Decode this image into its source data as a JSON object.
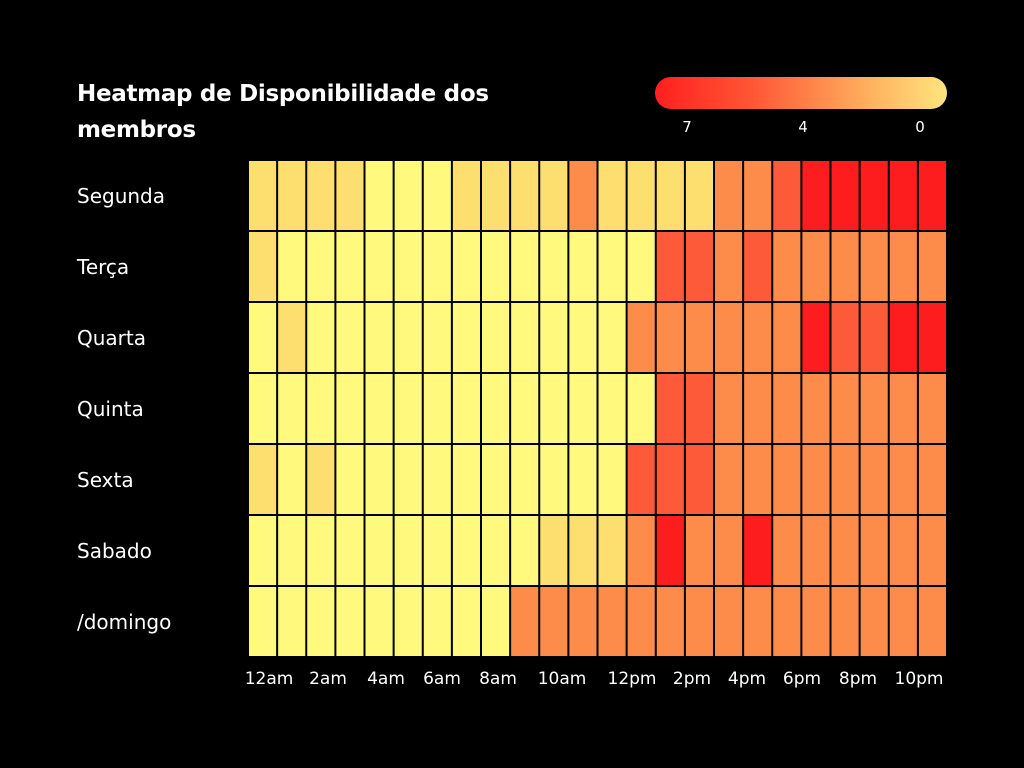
{
  "chart_data": {
    "type": "heatmap",
    "title": "Heatmap de Disponibilidade dos membros",
    "rows": [
      "Segunda",
      "Terça",
      "Quarta",
      "Quinta",
      "Sexta",
      "Sabado",
      "/domingo"
    ],
    "x_tick_labels": [
      "12am",
      "2am",
      "4am",
      "6am",
      "8am",
      "10am",
      "12pm",
      "2pm",
      "4pm",
      "6pm",
      "8pm",
      "10pm"
    ],
    "legend": {
      "labels": [
        "7",
        "4",
        "0"
      ],
      "min": 0,
      "max": 7,
      "colors": [
        "#ff1f1f",
        "#ff5a36",
        "#ffb460",
        "#ffe57d"
      ]
    },
    "values": [
      [
        1,
        1,
        1,
        1,
        0,
        0,
        0,
        1,
        1,
        1,
        1,
        4,
        1,
        1,
        1,
        1,
        4,
        4,
        5,
        7,
        7,
        7,
        7,
        7
      ],
      [
        1,
        0,
        0,
        0,
        0,
        0,
        0,
        0,
        0,
        0,
        0,
        0,
        0,
        0,
        5,
        5,
        4,
        5,
        4,
        4,
        4,
        4,
        4,
        4
      ],
      [
        0,
        1,
        0,
        0,
        0,
        0,
        0,
        0,
        0,
        0,
        0,
        0,
        0,
        4,
        4,
        4,
        4,
        4,
        4,
        7,
        5,
        5,
        7,
        7
      ],
      [
        0,
        0,
        0,
        0,
        0,
        0,
        0,
        0,
        0,
        0,
        0,
        0,
        0,
        0,
        5,
        5,
        4,
        4,
        4,
        4,
        4,
        4,
        4,
        4
      ],
      [
        1,
        0,
        1,
        0,
        0,
        0,
        0,
        0,
        0,
        0,
        0,
        0,
        0,
        5,
        5,
        5,
        4,
        4,
        4,
        4,
        4,
        4,
        4,
        4
      ],
      [
        0,
        0,
        0,
        0,
        0,
        0,
        0,
        0,
        0,
        0,
        1,
        1,
        1,
        4,
        7,
        4,
        4,
        7,
        4,
        4,
        4,
        4,
        4,
        4
      ],
      [
        0,
        0,
        0,
        0,
        0,
        0,
        0,
        0,
        0,
        4,
        4,
        4,
        4,
        4,
        4,
        4,
        4,
        4,
        4,
        4,
        4,
        4,
        4,
        4
      ]
    ]
  }
}
